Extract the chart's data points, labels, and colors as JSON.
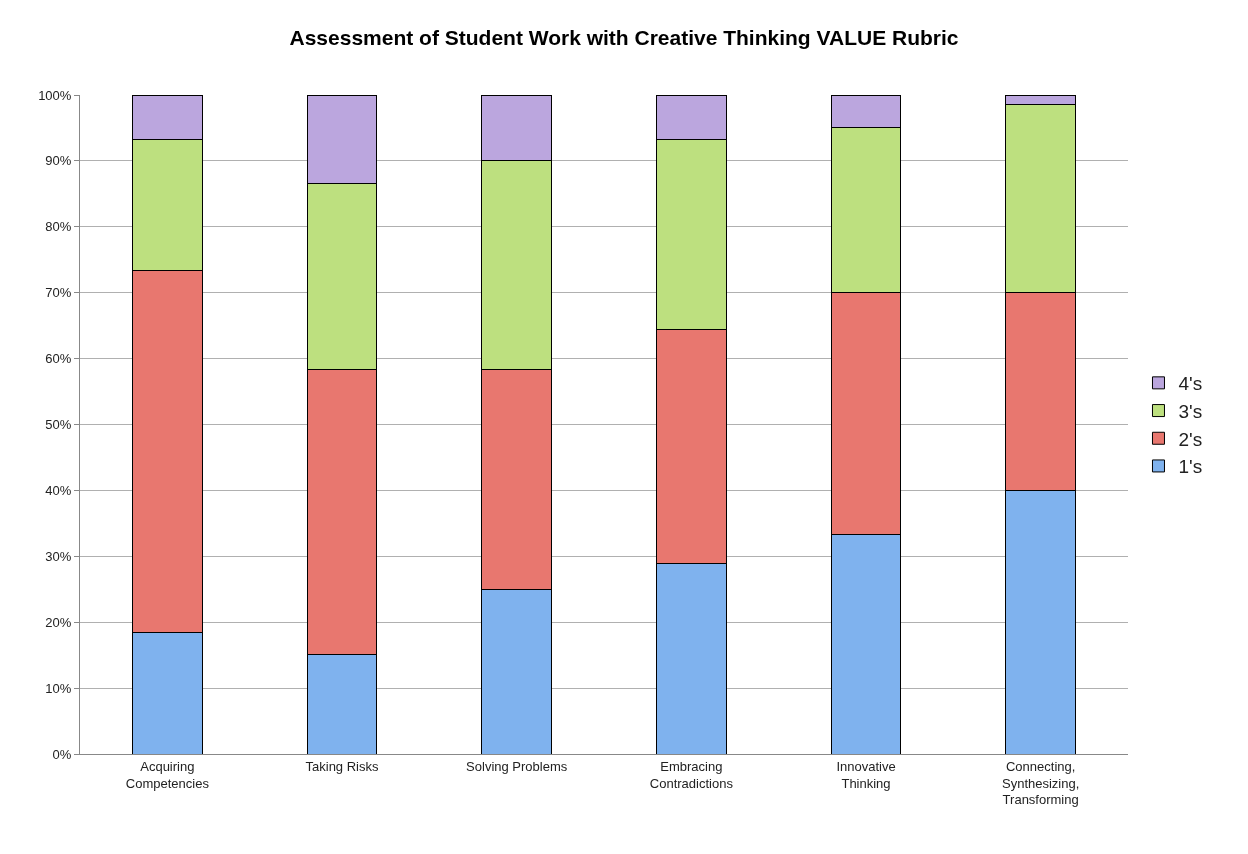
{
  "chart_data": {
    "type": "bar",
    "title": "Assessment of Student Work with Creative Thinking VALUE Rubric",
    "stacked": true,
    "categories": [
      "Acquiring Competencies",
      "Taking Risks",
      "Solving Problems",
      "Embracing Contradictions",
      "Innovative Thinking",
      "Connecting, Synthesizing, Transforming"
    ],
    "series": [
      {
        "name": "1's",
        "color": "#7fb2ee",
        "values": [
          18.4,
          15.1,
          25.0,
          28.9,
          33.3,
          40.0
        ]
      },
      {
        "name": "2's",
        "color": "#e8776f",
        "values": [
          55.0,
          43.3,
          33.3,
          35.5,
          36.7,
          30.0
        ]
      },
      {
        "name": "3's",
        "color": "#bde07f",
        "values": [
          19.9,
          28.2,
          31.7,
          28.8,
          25.0,
          28.5
        ]
      },
      {
        "name": "4's",
        "color": "#bba6de",
        "values": [
          6.7,
          13.4,
          10.0,
          6.8,
          5.0,
          1.5
        ]
      }
    ],
    "ylim": [
      0,
      100
    ],
    "yticks": [
      {
        "value": 0,
        "label": "0%"
      },
      {
        "value": 10,
        "label": "10%"
      },
      {
        "value": 20,
        "label": "20%"
      },
      {
        "value": 30,
        "label": "30%"
      },
      {
        "value": 40,
        "label": "40%"
      },
      {
        "value": 50,
        "label": "50%"
      },
      {
        "value": 60,
        "label": "60%"
      },
      {
        "value": 70,
        "label": "70%"
      },
      {
        "value": 80,
        "label": "80%"
      },
      {
        "value": 90,
        "label": "90%"
      },
      {
        "value": 100,
        "label": "100%"
      }
    ],
    "grid": "y",
    "legend": "right"
  }
}
